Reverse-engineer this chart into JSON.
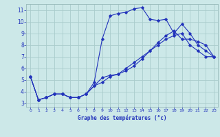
{
  "title": "Graphe des températures (°c)",
  "bg_color": "#cce8e8",
  "grid_color": "#aacccc",
  "line_color": "#2233bb",
  "xlim": [
    -0.5,
    23.5
  ],
  "ylim": [
    2.7,
    11.5
  ],
  "xticks": [
    0,
    1,
    2,
    3,
    4,
    5,
    6,
    7,
    8,
    9,
    10,
    11,
    12,
    13,
    14,
    15,
    16,
    17,
    18,
    19,
    20,
    21,
    22,
    23
  ],
  "yticks": [
    3,
    4,
    5,
    6,
    7,
    8,
    9,
    10,
    11
  ],
  "line1_x": [
    0,
    1,
    2,
    3,
    4,
    5,
    6,
    7,
    8,
    9,
    10,
    11,
    12,
    13,
    14,
    15,
    16,
    17,
    18,
    19,
    20,
    21,
    22,
    23
  ],
  "line1_y": [
    5.3,
    3.3,
    3.5,
    3.8,
    3.8,
    3.5,
    3.5,
    3.8,
    4.8,
    8.5,
    10.5,
    10.7,
    10.8,
    11.1,
    11.2,
    10.2,
    10.1,
    10.2,
    9.0,
    9.8,
    9.0,
    8.0,
    7.5,
    7.0
  ],
  "line2_x": [
    0,
    1,
    2,
    3,
    4,
    5,
    6,
    7,
    8,
    9,
    10,
    11,
    12,
    13,
    14,
    15,
    16,
    17,
    18,
    19,
    20,
    21,
    22,
    23
  ],
  "line2_y": [
    5.3,
    3.3,
    3.5,
    3.8,
    3.8,
    3.5,
    3.5,
    3.8,
    4.5,
    5.2,
    5.4,
    5.5,
    5.8,
    6.2,
    6.8,
    7.5,
    8.2,
    8.8,
    9.2,
    8.5,
    8.5,
    8.3,
    8.0,
    7.0
  ],
  "line3_x": [
    0,
    1,
    2,
    3,
    4,
    5,
    6,
    7,
    8,
    9,
    10,
    11,
    12,
    13,
    14,
    15,
    16,
    17,
    18,
    19,
    20,
    21,
    22,
    23
  ],
  "line3_y": [
    5.3,
    3.3,
    3.5,
    3.8,
    3.8,
    3.5,
    3.5,
    3.8,
    4.5,
    4.8,
    5.3,
    5.5,
    6.0,
    6.5,
    7.0,
    7.5,
    8.0,
    8.5,
    8.8,
    9.0,
    8.0,
    7.5,
    7.0,
    7.0
  ]
}
